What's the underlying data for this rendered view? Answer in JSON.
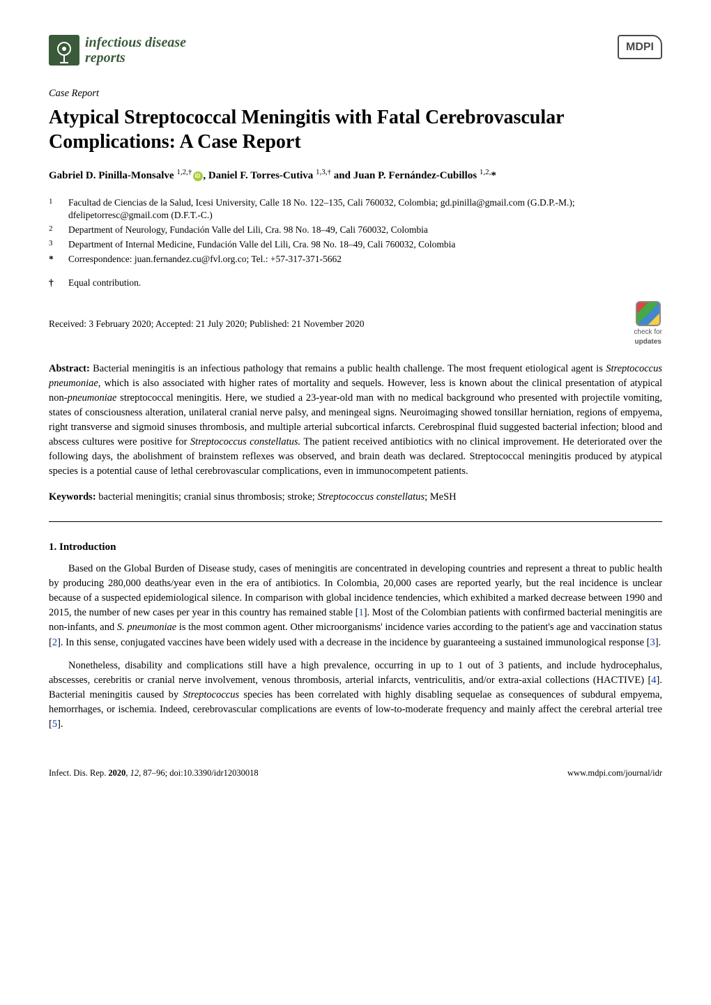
{
  "journal": {
    "name_line1": "infectious disease",
    "name_line2": "reports",
    "publisher": "MDPI"
  },
  "article": {
    "type": "Case Report",
    "title": "Atypical Streptococcal Meningitis with Fatal Cerebrovascular Complications: A Case Report",
    "authors_html": "Gabriel D. Pinilla-Monsalve <sup>1,2,†</sup><span class=\"orcid\" data-name=\"orcid-icon\" data-interactable=\"false\"></span>, Daniel F. Torres-Cutiva <sup>1,3,†</sup> and Juan P. Fernández-Cubillos <sup>1,2,</sup>*",
    "affiliations": [
      {
        "num": "1",
        "text": "Facultad de Ciencias de la Salud, Icesi University, Calle 18 No. 122–135, Cali 760032, Colombia; gd.pinilla@gmail.com (G.D.P.-M.); dfelipetorresc@gmail.com (D.F.T.-C.)"
      },
      {
        "num": "2",
        "text": "Department of Neurology, Fundación Valle del Lili, Cra. 98 No. 18–49, Cali 760032, Colombia"
      },
      {
        "num": "3",
        "text": "Department of Internal Medicine, Fundación Valle del Lili, Cra. 98 No. 18–49, Cali 760032, Colombia"
      }
    ],
    "correspondence": {
      "sym": "*",
      "text": "Correspondence: juan.fernandez.cu@fvl.org.co; Tel.: +57-317-371-5662"
    },
    "equal_contrib": {
      "sym": "†",
      "text": "Equal contribution."
    },
    "dates": "Received: 3 February 2020; Accepted: 21 July 2020; Published: 21 November 2020",
    "check_updates_label": "check for",
    "check_updates_label2": "updates",
    "abstract_label": "Abstract:",
    "abstract_text": " Bacterial meningitis is an infectious pathology that remains a public health challenge. The most frequent etiological agent is <span class=\"italic\">Streptococcus pneumoniae</span>, which is also associated with higher rates of mortality and sequels. However, less is known about the clinical presentation of atypical non-<span class=\"italic\">pneumoniae</span> streptococcal meningitis. Here, we studied a 23-year-old man with no medical background who presented with projectile vomiting, states of consciousness alteration, unilateral cranial nerve palsy, and meningeal signs. Neuroimaging showed tonsillar herniation, regions of empyema, right transverse and sigmoid sinuses thrombosis, and multiple arterial subcortical infarcts. Cerebrospinal fluid suggested bacterial infection; blood and abscess cultures were positive for <span class=\"italic\">Streptococcus constellatus.</span> The patient received antibiotics with no clinical improvement. He deteriorated over the following days, the abolishment of brainstem reflexes was observed, and brain death was declared. Streptococcal meningitis produced by atypical species is a potential cause of lethal cerebrovascular complications, even in immunocompetent patients.",
    "keywords_label": "Keywords:",
    "keywords_text": " bacterial meningitis; cranial sinus thrombosis; stroke; <span class=\"italic\">Streptococcus constellatus</span>; MeSH",
    "section1_heading": "1. Introduction",
    "para1": "Based on the Global Burden of Disease study, cases of meningitis are concentrated in developing countries and represent a threat to public health by producing 280,000 deaths/year even in the era of antibiotics. In Colombia, 20,000 cases are reported yearly, but the real incidence is unclear because of a suspected epidemiological silence. In comparison with global incidence tendencies, which exhibited a marked decrease between 1990 and 2015, the number of new cases per year in this country has remained stable [<span class=\"ref-link\">1</span>]. Most of the Colombian patients with confirmed bacterial meningitis are non-infants, and <span class=\"italic\">S. pneumoniae</span> is the most common agent. Other microorganisms' incidence varies according to the patient's age and vaccination status [<span class=\"ref-link\">2</span>]. In this sense, conjugated vaccines have been widely used with a decrease in the incidence by guaranteeing a sustained immunological response [<span class=\"ref-link\">3</span>].",
    "para2": "Nonetheless, disability and complications still have a high prevalence, occurring in up to 1 out of 3 patients, and include hydrocephalus, abscesses, cerebritis or cranial nerve involvement, venous thrombosis, arterial infarcts, ventriculitis, and/or extra-axial collections (HACTIVE) [<span class=\"ref-link\">4</span>]. Bacterial meningitis caused by <span class=\"italic\">Streptococcus</span> species has been correlated with highly disabling sequelae as consequences of subdural empyema, hemorrhages, or ischemia. Indeed, cerebrovascular complications are events of low-to-moderate frequency and mainly affect the cerebral arterial tree [<span class=\"ref-link\">5</span>]."
  },
  "footer": {
    "left": "Infect. Dis. Rep. <b>2020</b>, <span class=\"italic\">12</span>, 87–96; doi:10.3390/idr12030018",
    "right": "www.mdpi.com/journal/idr"
  },
  "colors": {
    "journal_name": "#3a5a3a",
    "ref_link": "#0645ad",
    "orcid": "#a6ce39",
    "text": "#000000",
    "background": "#ffffff"
  },
  "typography": {
    "body_font": "Palatino Linotype",
    "body_size_pt": 11,
    "title_size_pt": 21,
    "section_heading_size_pt": 11.5
  }
}
